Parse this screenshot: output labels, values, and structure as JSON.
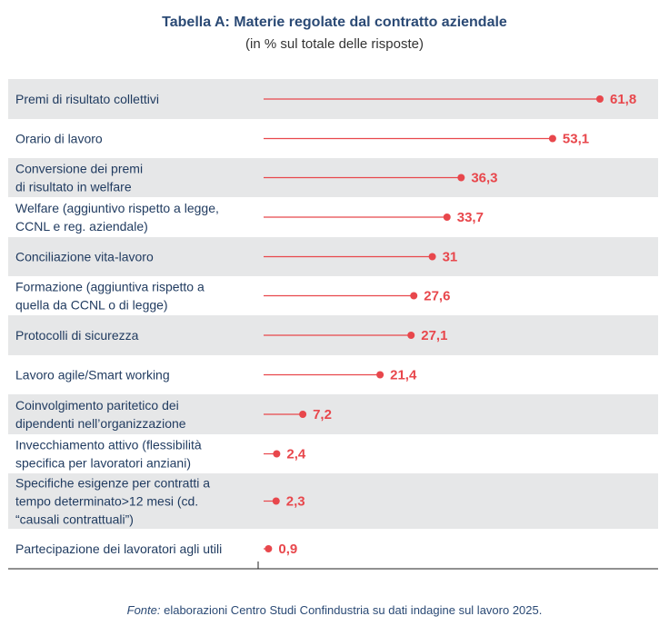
{
  "title": "Tabella A: Materie regolate dal contratto aziendale",
  "subtitle": "(in % sul totale delle risposte)",
  "source_label": "Fonte:",
  "source_text": " elaborazioni Centro Studi Confindustria su dati indagine sul lavoro 2025.",
  "colors": {
    "accent": "#e8474c",
    "band": "#e6e7e8",
    "text": "#1f3a5f"
  },
  "chart_data": {
    "type": "bar",
    "title": "Tabella A: Materie regolate dal contratto aziendale",
    "subtitle": "(in % sul totale delle risposte)",
    "xlim": [
      0,
      70
    ],
    "grid": false,
    "categories": [
      [
        "Premi di risultato collettivi"
      ],
      [
        "Orario di lavoro"
      ],
      [
        "Conversione dei premi",
        "di risultato in welfare"
      ],
      [
        "Welfare (aggiuntivo rispetto a legge,",
        "CCNL e reg. aziendale)"
      ],
      [
        "Conciliazione vita-lavoro"
      ],
      [
        "Formazione (aggiuntiva rispetto a",
        "quella da CCNL o di legge)"
      ],
      [
        "Protocolli di sicurezza"
      ],
      [
        "Lavoro agile/Smart working"
      ],
      [
        "Coinvolgimento paritetico dei",
        "dipendenti nell’organizzazione"
      ],
      [
        "Invecchiamento attivo (flessibilità",
        "specifica per lavoratori anziani)"
      ],
      [
        "Specifiche esigenze per contratti a",
        "tempo determinato>12 mesi (cd.",
        "“causali contrattuali”)"
      ],
      [
        "Partecipazione dei lavoratori agli utili"
      ]
    ],
    "values": [
      61.8,
      53.1,
      36.3,
      33.7,
      31,
      27.6,
      27.1,
      21.4,
      7.2,
      2.4,
      2.3,
      0.9
    ],
    "value_labels": [
      "61,8",
      "53,1",
      "36,3",
      "33,7",
      "31",
      "27,6",
      "27,1",
      "21,4",
      "7,2",
      "2,4",
      "2,3",
      "0,9"
    ]
  }
}
